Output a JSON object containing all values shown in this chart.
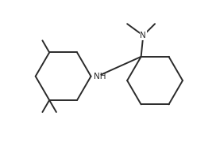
{
  "background": "#ffffff",
  "line_color": "#2a2a2a",
  "line_width": 1.4,
  "text_color": "#2a2a2a",
  "font_size": 7.5,
  "nh_label": "NH",
  "n_label": "N"
}
